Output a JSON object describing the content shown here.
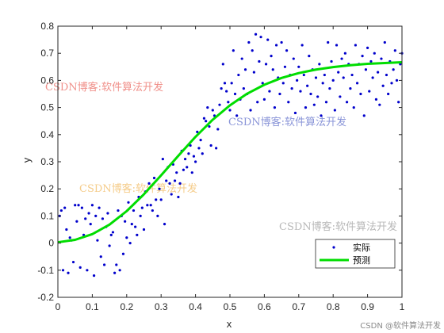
{
  "chart_data": {
    "type": "scatter",
    "title": "",
    "xlabel": "x",
    "ylabel": "y",
    "xlim": [
      0,
      1
    ],
    "ylim": [
      -0.2,
      0.8
    ],
    "xticks": [
      0,
      0.1,
      0.2,
      0.3,
      0.4,
      0.5,
      0.6,
      0.7,
      0.8,
      0.9,
      1
    ],
    "xtick_labels": [
      "0",
      "0.1",
      "0.2",
      "0.3",
      "0.4",
      "0.5",
      "0.6",
      "0.7",
      "0.8",
      "0.9",
      "1"
    ],
    "yticks": [
      -0.2,
      -0.1,
      0,
      0.1,
      0.2,
      0.3,
      0.4,
      0.5,
      0.6,
      0.7,
      0.8
    ],
    "ytick_labels": [
      "-0.2",
      "-0.1",
      "0",
      "0.1",
      "0.2",
      "0.3",
      "0.4",
      "0.5",
      "0.6",
      "0.7",
      "0.8"
    ],
    "grid": false,
    "legend_position": "bottom-right",
    "series": [
      {
        "name": "实际",
        "type": "scatter",
        "color": "#0000cc",
        "points": [
          [
            0.005,
            0.1
          ],
          [
            0.01,
            0.12
          ],
          [
            0.015,
            -0.1
          ],
          [
            0.02,
            0.13
          ],
          [
            0.025,
            0.05
          ],
          [
            0.03,
            -0.11
          ],
          [
            0.035,
            0.02
          ],
          [
            0.04,
            0.01
          ],
          [
            0.045,
            -0.07
          ],
          [
            0.05,
            0.14
          ],
          [
            0.055,
            0.08
          ],
          [
            0.06,
            0.14
          ],
          [
            0.065,
            -0.09
          ],
          [
            0.07,
            0.13
          ],
          [
            0.075,
            0.03
          ],
          [
            0.08,
            0.09
          ],
          [
            0.085,
            -0.1
          ],
          [
            0.09,
            0.11
          ],
          [
            0.095,
            0.07
          ],
          [
            0.1,
            0.14
          ],
          [
            0.105,
            -0.12
          ],
          [
            0.11,
            0.1
          ],
          [
            0.115,
            0.01
          ],
          [
            0.12,
            0.13
          ],
          [
            0.125,
            -0.05
          ],
          [
            0.13,
            0.09
          ],
          [
            0.135,
            -0.08
          ],
          [
            0.14,
            0.06
          ],
          [
            0.145,
            0.11
          ],
          [
            0.15,
            -0.01
          ],
          [
            0.155,
            0.03
          ],
          [
            0.16,
            0.04
          ],
          [
            0.165,
            -0.11
          ],
          [
            0.17,
            -0.08
          ],
          [
            0.175,
            0.12
          ],
          [
            0.18,
            -0.1
          ],
          [
            0.185,
            0.1
          ],
          [
            0.19,
            -0.04
          ],
          [
            0.195,
            0.08
          ],
          [
            0.2,
            0.02
          ],
          [
            0.205,
            0.15
          ],
          [
            0.21,
            0.0
          ],
          [
            0.215,
            0.07
          ],
          [
            0.22,
            0.12
          ],
          [
            0.225,
            0.06
          ],
          [
            0.23,
            0.03
          ],
          [
            0.235,
            0.17
          ],
          [
            0.24,
            0.1
          ],
          [
            0.245,
            0.13
          ],
          [
            0.25,
            0.05
          ],
          [
            0.255,
            0.19
          ],
          [
            0.26,
            0.14
          ],
          [
            0.265,
            0.22
          ],
          [
            0.27,
            0.14
          ],
          [
            0.275,
            0.12
          ],
          [
            0.28,
            0.24
          ],
          [
            0.285,
            0.16
          ],
          [
            0.29,
            0.1
          ],
          [
            0.295,
            0.2
          ],
          [
            0.3,
            0.16
          ],
          [
            0.305,
            0.31
          ],
          [
            0.31,
            0.07
          ],
          [
            0.315,
            0.23
          ],
          [
            0.32,
            0.28
          ],
          [
            0.325,
            0.22
          ],
          [
            0.33,
            0.18
          ],
          [
            0.335,
            0.29
          ],
          [
            0.34,
            0.23
          ],
          [
            0.345,
            0.26
          ],
          [
            0.35,
            0.17
          ],
          [
            0.355,
            0.22
          ],
          [
            0.36,
            0.34
          ],
          [
            0.365,
            0.27
          ],
          [
            0.37,
            0.31
          ],
          [
            0.375,
            0.28
          ],
          [
            0.38,
            0.33
          ],
          [
            0.385,
            0.36
          ],
          [
            0.39,
            0.26
          ],
          [
            0.395,
            0.32
          ],
          [
            0.4,
            0.3
          ],
          [
            0.405,
            0.41
          ],
          [
            0.41,
            0.35
          ],
          [
            0.415,
            0.38
          ],
          [
            0.42,
            0.33
          ],
          [
            0.425,
            0.46
          ],
          [
            0.43,
            0.45
          ],
          [
            0.435,
            0.5
          ],
          [
            0.44,
            0.43
          ],
          [
            0.445,
            0.36
          ],
          [
            0.45,
            0.49
          ],
          [
            0.455,
            0.47
          ],
          [
            0.46,
            0.35
          ],
          [
            0.465,
            0.42
          ],
          [
            0.47,
            0.51
          ],
          [
            0.475,
            0.57
          ],
          [
            0.48,
            0.66
          ],
          [
            0.485,
            0.59
          ],
          [
            0.49,
            0.56
          ],
          [
            0.495,
            0.52
          ],
          [
            0.5,
            0.49
          ],
          [
            0.505,
            0.59
          ],
          [
            0.51,
            0.71
          ],
          [
            0.515,
            0.55
          ],
          [
            0.52,
            0.47
          ],
          [
            0.525,
            0.62
          ],
          [
            0.53,
            0.53
          ],
          [
            0.535,
            0.68
          ],
          [
            0.54,
            0.57
          ],
          [
            0.545,
            0.64
          ],
          [
            0.55,
            0.55
          ],
          [
            0.555,
            0.74
          ],
          [
            0.56,
            0.49
          ],
          [
            0.565,
            0.71
          ],
          [
            0.57,
            0.63
          ],
          [
            0.575,
            0.77
          ],
          [
            0.58,
            0.52
          ],
          [
            0.585,
            0.67
          ],
          [
            0.59,
            0.76
          ],
          [
            0.595,
            0.59
          ],
          [
            0.6,
            0.53
          ],
          [
            0.605,
            0.66
          ],
          [
            0.61,
            0.75
          ],
          [
            0.615,
            0.56
          ],
          [
            0.62,
            0.69
          ],
          [
            0.625,
            0.64
          ],
          [
            0.63,
            0.5
          ],
          [
            0.635,
            0.73
          ],
          [
            0.64,
            0.61
          ],
          [
            0.645,
            0.55
          ],
          [
            0.65,
            0.74
          ],
          [
            0.655,
            0.59
          ],
          [
            0.66,
            0.65
          ],
          [
            0.665,
            0.71
          ],
          [
            0.67,
            0.52
          ],
          [
            0.675,
            0.62
          ],
          [
            0.68,
            0.57
          ],
          [
            0.685,
            0.68
          ],
          [
            0.69,
            0.48
          ],
          [
            0.695,
            0.6
          ],
          [
            0.7,
            0.65
          ],
          [
            0.705,
            0.56
          ],
          [
            0.71,
            0.73
          ],
          [
            0.715,
            0.62
          ],
          [
            0.72,
            0.5
          ],
          [
            0.725,
            0.58
          ],
          [
            0.73,
            0.69
          ],
          [
            0.735,
            0.55
          ],
          [
            0.74,
            0.64
          ],
          [
            0.745,
            0.51
          ],
          [
            0.75,
            0.61
          ],
          [
            0.755,
            0.54
          ],
          [
            0.76,
            0.66
          ],
          [
            0.765,
            0.47
          ],
          [
            0.77,
            0.59
          ],
          [
            0.775,
            0.62
          ],
          [
            0.78,
            0.52
          ],
          [
            0.785,
            0.74
          ],
          [
            0.79,
            0.57
          ],
          [
            0.795,
            0.67
          ],
          [
            0.8,
            0.6
          ],
          [
            0.805,
            0.49
          ],
          [
            0.81,
            0.73
          ],
          [
            0.815,
            0.63
          ],
          [
            0.82,
            0.54
          ],
          [
            0.825,
            0.68
          ],
          [
            0.83,
            0.61
          ],
          [
            0.835,
            0.7
          ],
          [
            0.84,
            0.52
          ],
          [
            0.845,
            0.66
          ],
          [
            0.85,
            0.57
          ],
          [
            0.855,
            0.62
          ],
          [
            0.86,
            0.5
          ],
          [
            0.865,
            0.73
          ],
          [
            0.87,
            0.59
          ],
          [
            0.875,
            0.66
          ],
          [
            0.88,
            0.55
          ],
          [
            0.885,
            0.69
          ],
          [
            0.89,
            0.47
          ],
          [
            0.895,
            0.64
          ],
          [
            0.9,
            0.72
          ],
          [
            0.905,
            0.56
          ],
          [
            0.91,
            0.67
          ],
          [
            0.915,
            0.61
          ],
          [
            0.92,
            0.7
          ],
          [
            0.925,
            0.53
          ],
          [
            0.93,
            0.63
          ],
          [
            0.935,
            0.51
          ],
          [
            0.94,
            0.68
          ],
          [
            0.945,
            0.58
          ],
          [
            0.95,
            0.74
          ],
          [
            0.955,
            0.62
          ],
          [
            0.96,
            0.55
          ],
          [
            0.965,
            0.67
          ],
          [
            0.97,
            0.59
          ],
          [
            0.975,
            0.64
          ],
          [
            0.98,
            0.71
          ],
          [
            0.985,
            0.6
          ],
          [
            0.99,
            0.52
          ],
          [
            0.995,
            0.66
          ],
          [
            1.0,
            0.7
          ]
        ]
      },
      {
        "name": "预测",
        "type": "line",
        "color": "#00dd00",
        "x": [
          0,
          0.05,
          0.1,
          0.15,
          0.2,
          0.25,
          0.3,
          0.35,
          0.4,
          0.45,
          0.5,
          0.55,
          0.6,
          0.65,
          0.7,
          0.75,
          0.8,
          0.85,
          0.9,
          0.95,
          1.0
        ],
        "y": [
          0.003,
          0.012,
          0.033,
          0.068,
          0.118,
          0.18,
          0.25,
          0.322,
          0.392,
          0.455,
          0.508,
          0.551,
          0.584,
          0.609,
          0.627,
          0.64,
          0.649,
          0.656,
          0.661,
          0.664,
          0.667
        ]
      }
    ]
  },
  "watermarks": [
    {
      "text": "CSDN博客:软件算法开发",
      "color": "#f0908a"
    },
    {
      "text": "CSDN博客:软件算法开发",
      "color": "#8a95d8"
    },
    {
      "text": "CSDN博客:软件算法开发",
      "color": "#f5cc8a"
    },
    {
      "text": "CSDN博客:软件算法开发",
      "color": "#b8b8b8"
    }
  ],
  "credit": "CSDN @软件算法开发"
}
